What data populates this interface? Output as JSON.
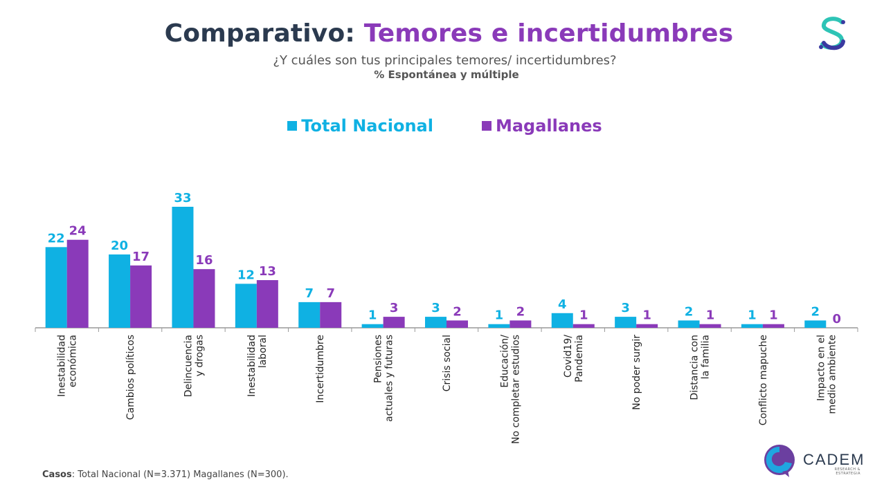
{
  "header": {
    "title_part1": "Comparativo:",
    "title_part2": "Temores e incertidumbres",
    "subtitle": "¿Y cuáles son tus principales temores/ incertidumbres?",
    "note": "% Espontánea y múltiple"
  },
  "footer": {
    "label": "Casos",
    "text": ": Total Nacional (N=3.371) Magallanes (N=300)."
  },
  "brand": {
    "name": "CADEM",
    "tagline": "RESEARCH & ESTRATEGIA"
  },
  "colors": {
    "total": "#0fb1e3",
    "magallanes": "#8a3ab9",
    "axis": "#999999",
    "label": "#222222"
  },
  "chart_data": {
    "type": "bar",
    "title": "Comparativo: Temores e incertidumbres",
    "categories": [
      [
        "Inestabilidad",
        "económica"
      ],
      [
        "Cambios políticos"
      ],
      [
        "Delincuencia",
        "y drogas"
      ],
      [
        "Inestabilidad",
        "laboral"
      ],
      [
        "Incertidumbre"
      ],
      [
        "Pensiones",
        "actuales y futuras"
      ],
      [
        "Crisis social"
      ],
      [
        "Educación/",
        "No completar estudios"
      ],
      [
        "Covid19/",
        "Pandemia"
      ],
      [
        "No poder surgir"
      ],
      [
        "Distancia con",
        "la familia"
      ],
      [
        "Conflicto mapuche"
      ],
      [
        "Impacto en el",
        "medio ambiente"
      ]
    ],
    "series": [
      {
        "name": "Total Nacional",
        "values": [
          22,
          20,
          33,
          12,
          7,
          1,
          3,
          1,
          4,
          3,
          2,
          1,
          2
        ]
      },
      {
        "name": "Magallanes",
        "values": [
          24,
          17,
          16,
          13,
          7,
          3,
          2,
          2,
          1,
          1,
          1,
          1,
          0
        ]
      }
    ],
    "ylim": [
      0,
      33
    ],
    "legend": "top-center",
    "xlabel": "",
    "ylabel": ""
  }
}
